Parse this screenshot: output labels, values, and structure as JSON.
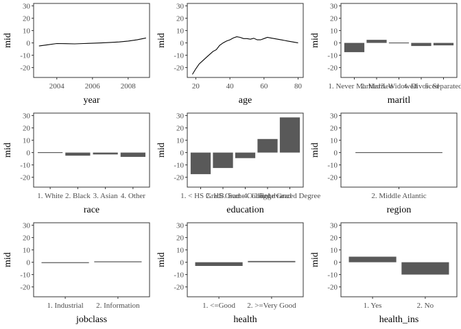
{
  "chart_data": [
    {
      "type": "line",
      "xlabel": "year",
      "ylabel": "mid",
      "xlim": [
        2002.7,
        2009.2
      ],
      "ylim": [
        -28,
        32
      ],
      "x_ticks": [
        2004,
        2006,
        2008
      ],
      "y_ticks": [
        -20,
        -10,
        0,
        10,
        20,
        30
      ],
      "x": [
        2003,
        2003.5,
        2004,
        2004.5,
        2005,
        2005.5,
        2006,
        2006.5,
        2007,
        2007.5,
        2008,
        2008.5,
        2009
      ],
      "values": [
        -2.5,
        -1.5,
        -0.5,
        -0.6,
        -0.8,
        -0.5,
        -0.3,
        0,
        0.4,
        0.8,
        1.5,
        2.5,
        4
      ]
    },
    {
      "type": "line",
      "xlabel": "age",
      "ylabel": "mid",
      "xlim": [
        15,
        83
      ],
      "ylim": [
        -28,
        32
      ],
      "x_ticks": [
        20,
        40,
        60,
        80
      ],
      "y_ticks": [
        -20,
        -10,
        0,
        10,
        20,
        30
      ],
      "x": [
        18,
        20,
        22,
        24,
        26,
        28,
        30,
        32,
        34,
        36,
        38,
        40,
        42,
        44,
        46,
        48,
        50,
        52,
        54,
        56,
        58,
        60,
        62,
        64,
        66,
        68,
        70,
        72,
        74,
        76,
        78,
        80
      ],
      "values": [
        -25.5,
        -21,
        -17,
        -14.5,
        -12,
        -9.5,
        -7,
        -5.5,
        -2,
        0,
        1.5,
        2.5,
        4,
        5,
        4.5,
        3.5,
        3.5,
        3,
        3.8,
        2.5,
        2.5,
        3.5,
        4.5,
        4,
        3.5,
        3,
        2.5,
        2,
        1.5,
        1,
        0.5,
        0
      ]
    },
    {
      "type": "bar",
      "xlabel": "maritl",
      "ylabel": "mid",
      "ylim": [
        -28,
        32
      ],
      "y_ticks": [
        -20,
        -10,
        0,
        10,
        20,
        30
      ],
      "categories": [
        "1. Never Married",
        "2. Married",
        "3. Widowed",
        "4. Divorced",
        "5. Separated"
      ],
      "values": [
        -7.5,
        2.5,
        -0.4,
        -2.5,
        -2
      ]
    },
    {
      "type": "bar",
      "xlabel": "race",
      "ylabel": "mid",
      "ylim": [
        -28,
        32
      ],
      "y_ticks": [
        -20,
        -10,
        0,
        10,
        20,
        30
      ],
      "categories": [
        "1. White",
        "2. Black",
        "3. Asian",
        "4. Other"
      ],
      "values": [
        -0.3,
        -2.5,
        -1.5,
        -3.5
      ]
    },
    {
      "type": "bar",
      "xlabel": "education",
      "ylabel": "mid",
      "ylim": [
        -28,
        32
      ],
      "y_ticks": [
        -20,
        -10,
        0,
        10,
        20,
        30
      ],
      "categories": [
        "1. < HS Grad",
        "2. HS Grad",
        "3. Some College",
        "4. College Grad",
        "5. Advanced Degree"
      ],
      "values": [
        -17.5,
        -12.5,
        -4.5,
        11,
        28.5
      ]
    },
    {
      "type": "bar",
      "xlabel": "region",
      "ylabel": "mid",
      "ylim": [
        -28,
        32
      ],
      "y_ticks": [
        -20,
        -10,
        0,
        10,
        20,
        30
      ],
      "categories": [
        "2. Middle Atlantic"
      ],
      "values": [
        0
      ]
    },
    {
      "type": "bar",
      "xlabel": "jobclass",
      "ylabel": "mid",
      "ylim": [
        -28,
        32
      ],
      "y_ticks": [
        -20,
        -10,
        0,
        10,
        20,
        30
      ],
      "categories": [
        "1. Industrial",
        "2. Information"
      ],
      "values": [
        -0.7,
        0.7
      ]
    },
    {
      "type": "bar",
      "xlabel": "health",
      "ylabel": "mid",
      "ylim": [
        -28,
        32
      ],
      "y_ticks": [
        -20,
        -10,
        0,
        10,
        20,
        30
      ],
      "categories": [
        "1. <=Good",
        "2. >=Very Good"
      ],
      "values": [
        -3,
        1
      ]
    },
    {
      "type": "bar",
      "xlabel": "health_ins",
      "ylabel": "mid",
      "ylim": [
        -28,
        32
      ],
      "y_ticks": [
        -20,
        -10,
        0,
        10,
        20,
        30
      ],
      "categories": [
        "1. Yes",
        "2. No"
      ],
      "values": [
        4.5,
        -10
      ]
    }
  ]
}
